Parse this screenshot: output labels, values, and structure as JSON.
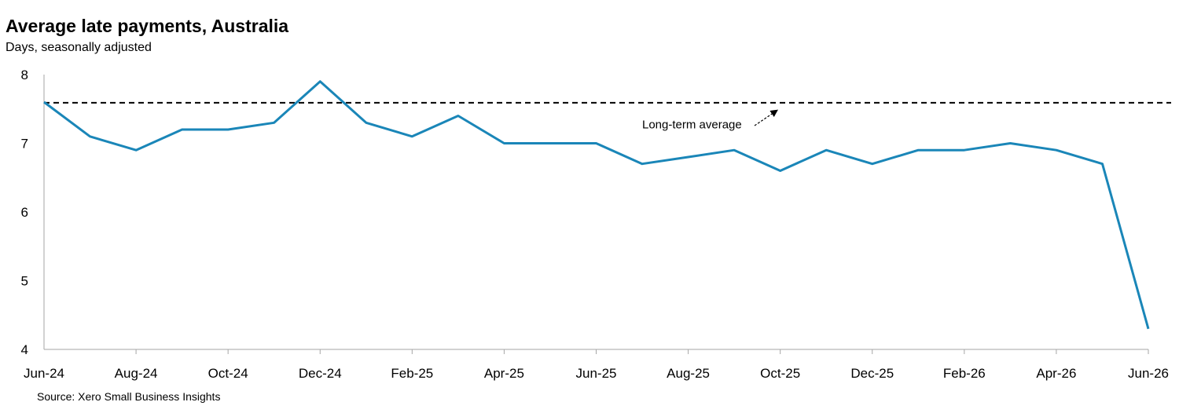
{
  "chart_data": {
    "type": "line",
    "title": "Average late payments, Australia",
    "subtitle": "Days, seasonally adjusted",
    "source": "Source: Xero Small Business Insights",
    "ylim": [
      4,
      8
    ],
    "yticks": [
      "8",
      "7",
      "6",
      "5",
      "4"
    ],
    "xtick_labels": [
      "Jun-24",
      "Aug-24",
      "Oct-24",
      "Dec-24",
      "Feb-25",
      "Apr-25",
      "Jun-25",
      "Aug-25",
      "Oct-25",
      "Dec-25",
      "Feb-26",
      "Apr-26",
      "Jun-26"
    ],
    "x": [
      "Jun-24",
      "Jul-24",
      "Aug-24",
      "Sep-24",
      "Oct-24",
      "Nov-24",
      "Dec-24",
      "Jan-25",
      "Feb-25",
      "Mar-25",
      "Apr-25",
      "May-25",
      "Jun-25",
      "Jul-25",
      "Aug-25",
      "Sep-25",
      "Oct-25",
      "Nov-25",
      "Dec-25",
      "Jan-26",
      "Feb-26",
      "Mar-26",
      "Apr-26",
      "May-26",
      "Jun-26"
    ],
    "series": [
      {
        "values": [
          7.6,
          7.1,
          6.9,
          7.2,
          7.2,
          7.3,
          7.9,
          7.3,
          7.1,
          7.4,
          7.0,
          7.0,
          7.0,
          6.7,
          6.8,
          6.9,
          6.6,
          6.9,
          6.7,
          6.9,
          6.9,
          7.0,
          6.9,
          6.7,
          4.3
        ]
      }
    ],
    "reference_line": {
      "label": "Long-term average",
      "value": 7.59
    },
    "grid": false,
    "colors": {
      "line": "#1a86b8",
      "reference": "#000000",
      "axis": "#a6a6a6"
    }
  }
}
